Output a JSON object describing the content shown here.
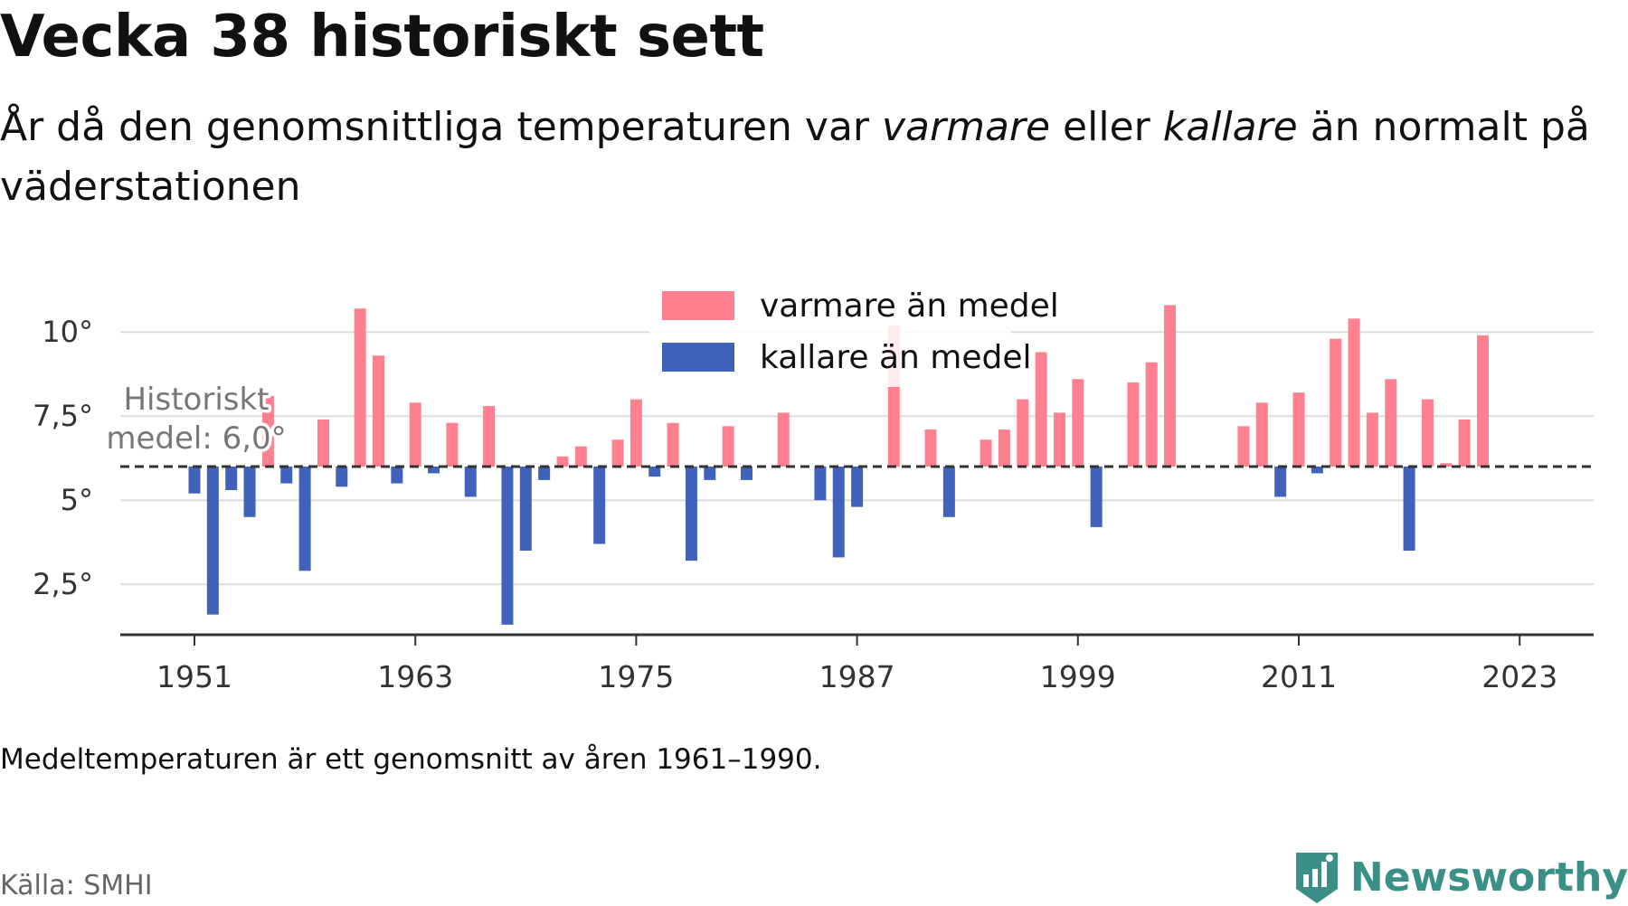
{
  "title": "Vecka 38 historiskt sett",
  "subtitle": {
    "part1": "År då den genomsnittliga temperaturen var ",
    "warm_word": "varmare",
    "part2": " eller ",
    "cold_word": "kallare",
    "part3": " än normalt på väderstationen"
  },
  "note": "Medeltemperaturen är ett genomsnitt av åren 1961–1990.",
  "source": "Källa: SMHI",
  "brand": {
    "name": "Newsworthy",
    "icon": "newsworthy-logo-icon",
    "color": "#3a8f86"
  },
  "chart_data": {
    "type": "bar",
    "title": "",
    "xlabel": "",
    "ylabel": "",
    "baseline": 6.0,
    "baseline_label_line1": "Historiskt",
    "baseline_label_line2": "medel: 6,0°",
    "ylim": [
      1,
      11
    ],
    "y_ticks": [
      2.5,
      5,
      7.5,
      10
    ],
    "y_tick_labels": [
      "2,5°",
      "5°",
      "7,5°",
      "10°"
    ],
    "x_ticks": [
      1951,
      1963,
      1975,
      1987,
      1999,
      2011,
      2023
    ],
    "x_tick_labels": [
      "1951",
      "1963",
      "1975",
      "1987",
      "1999",
      "2011",
      "2023"
    ],
    "grid": true,
    "legend_position": "top-center",
    "colors": {
      "warm": "#ff8190",
      "cold": "#4062bb",
      "baseline": "#333333",
      "grid": "#dddddd"
    },
    "series": [
      {
        "name": "varmare än medel",
        "color": "#ff8190"
      },
      {
        "name": "kallare än medel",
        "color": "#4062bb"
      }
    ],
    "x": [
      1951,
      1952,
      1953,
      1954,
      1955,
      1956,
      1957,
      1958,
      1959,
      1960,
      1961,
      1962,
      1963,
      1964,
      1965,
      1966,
      1967,
      1968,
      1969,
      1970,
      1971,
      1972,
      1973,
      1974,
      1975,
      1976,
      1977,
      1978,
      1979,
      1980,
      1981,
      1982,
      1983,
      1984,
      1985,
      1986,
      1987,
      1988,
      1989,
      1990,
      1991,
      1992,
      1993,
      1994,
      1995,
      1996,
      1997,
      1998,
      1999,
      2000,
      2001,
      2002,
      2003,
      2004,
      2005,
      2006,
      2007,
      2008,
      2009,
      2010,
      2011,
      2012,
      2013,
      2014,
      2015,
      2016,
      2017,
      2018,
      2019,
      2020,
      2021,
      2022,
      2023
    ],
    "values": [
      5.2,
      1.6,
      5.3,
      4.5,
      8.1,
      5.5,
      2.9,
      7.4,
      5.4,
      10.7,
      9.3,
      5.5,
      7.9,
      5.8,
      7.3,
      5.1,
      7.8,
      1.3,
      3.5,
      5.6,
      6.3,
      6.6,
      3.7,
      6.8,
      8.0,
      5.7,
      7.3,
      3.2,
      5.6,
      7.2,
      5.6,
      6.0,
      7.6,
      6.0,
      5.0,
      3.3,
      4.8,
      6.0,
      10.2,
      6.0,
      7.1,
      4.5,
      6.0,
      6.8,
      7.1,
      8.0,
      9.4,
      7.6,
      8.6,
      4.2,
      6.0,
      8.5,
      9.1,
      10.8,
      6.0,
      6.0,
      6.0,
      7.2,
      7.9,
      5.1,
      8.2,
      5.8,
      9.8,
      10.4,
      7.6,
      8.6,
      3.5,
      8.0,
      6.1,
      7.4,
      9.9,
      6.0,
      6.0
    ]
  }
}
